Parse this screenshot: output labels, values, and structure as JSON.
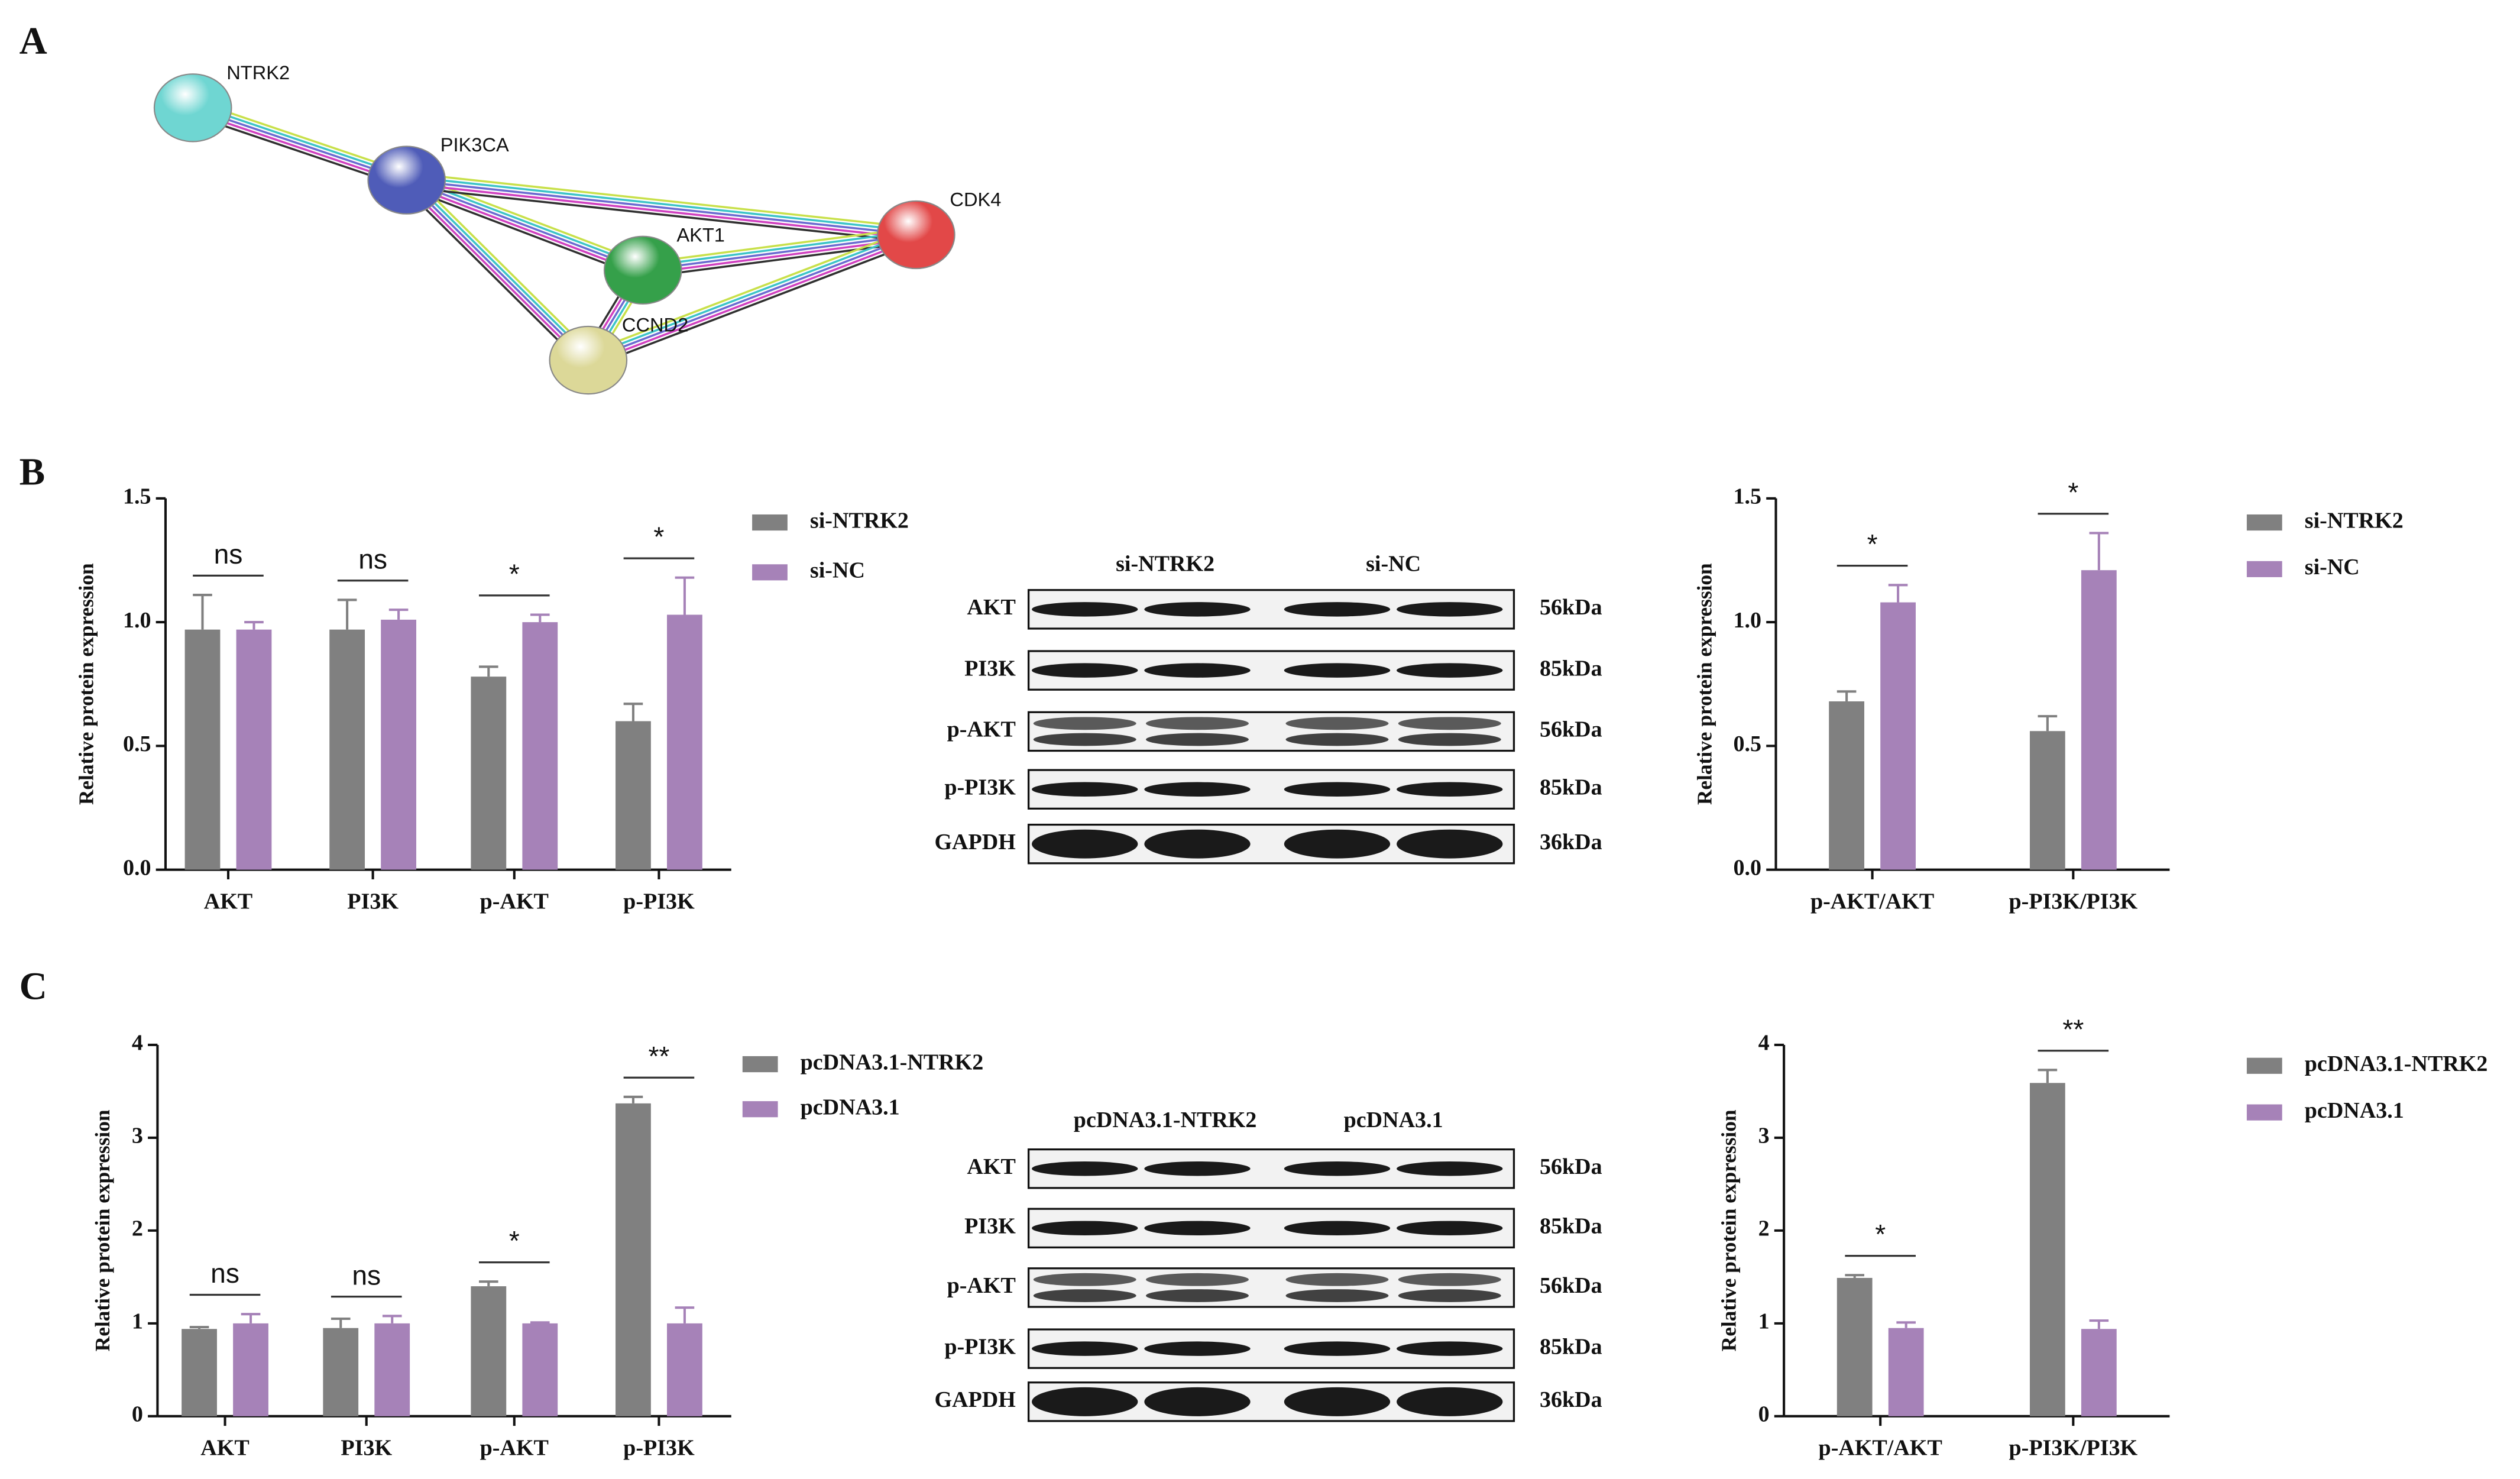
{
  "panels": [
    "A",
    "B",
    "C"
  ],
  "network": {
    "nodes": [
      {
        "label": "NTRK2",
        "color": "#6fd6d2"
      },
      {
        "label": "PIK3CA",
        "color": "#4f5cb8"
      },
      {
        "label": "AKT1",
        "color": "#35a04a"
      },
      {
        "label": "CDK4",
        "color": "#e24848"
      },
      {
        "label": "CCND2",
        "color": "#dcd898"
      }
    ]
  },
  "blots": [
    {
      "lanes": [
        "si-NTRK2",
        "si-NC"
      ],
      "rows": [
        {
          "protein": "AKT",
          "size": "56kDa"
        },
        {
          "protein": "PI3K",
          "size": "85kDa"
        },
        {
          "protein": "p-AKT",
          "size": "56kDa"
        },
        {
          "protein": "p-PI3K",
          "size": "85kDa"
        },
        {
          "protein": "GAPDH",
          "size": "36kDa"
        }
      ]
    },
    {
      "lanes": [
        "pcDNA3.1-NTRK2",
        "pcDNA3.1"
      ],
      "rows": [
        {
          "protein": "AKT",
          "size": "56kDa"
        },
        {
          "protein": "PI3K",
          "size": "85kDa"
        },
        {
          "protein": "p-AKT",
          "size": "56kDa"
        },
        {
          "protein": "p-PI3K",
          "size": "85kDa"
        },
        {
          "protein": "GAPDH",
          "size": "36kDa"
        }
      ]
    }
  ],
  "chart_data": [
    {
      "type": "bar",
      "ylabel": "Relative protein expression",
      "categories": [
        "AKT",
        "PI3K",
        "p-AKT",
        "p-PI3K"
      ],
      "series": [
        {
          "name": "si-NTRK2",
          "color": "#808080",
          "values": [
            0.97,
            0.97,
            0.78,
            0.6
          ],
          "errors": [
            0.14,
            0.12,
            0.04,
            0.07
          ]
        },
        {
          "name": "si-NC",
          "color": "#a682b8",
          "values": [
            0.97,
            1.01,
            1.0,
            1.03
          ],
          "errors": [
            0.03,
            0.04,
            0.03,
            0.15
          ]
        }
      ],
      "annotations": [
        "ns",
        "ns",
        "*",
        "*"
      ],
      "ylim": [
        0,
        1.5
      ],
      "yticks": [
        {
          "value": 0,
          "label": "0.0"
        },
        {
          "value": 0.5,
          "label": "0.5"
        },
        {
          "value": 1,
          "label": "1.0"
        },
        {
          "value": 1.5,
          "label": "1.5"
        }
      ]
    },
    {
      "type": "bar",
      "ylabel": "Relative protein expression",
      "categories": [
        "p-AKT/AKT",
        "p-PI3K/PI3K"
      ],
      "series": [
        {
          "name": "si-NTRK2",
          "color": "#808080",
          "values": [
            0.68,
            0.56
          ],
          "errors": [
            0.04,
            0.06
          ]
        },
        {
          "name": "si-NC",
          "color": "#a682b8",
          "values": [
            1.08,
            1.21
          ],
          "errors": [
            0.07,
            0.15
          ]
        }
      ],
      "annotations": [
        "*",
        "*"
      ],
      "ylim": [
        0,
        1.5
      ],
      "yticks": [
        {
          "value": 0,
          "label": "0.0"
        },
        {
          "value": 0.5,
          "label": "0.5"
        },
        {
          "value": 1,
          "label": "1.0"
        },
        {
          "value": 1.5,
          "label": "1.5"
        }
      ]
    },
    {
      "type": "bar",
      "ylabel": "Relative protein expression",
      "categories": [
        "AKT",
        "PI3K",
        "p-AKT",
        "p-PI3K"
      ],
      "series": [
        {
          "name": "pcDNA3.1-NTRK2",
          "color": "#808080",
          "values": [
            0.94,
            0.95,
            1.4,
            3.37
          ],
          "errors": [
            0.02,
            0.1,
            0.05,
            0.07
          ]
        },
        {
          "name": "pcDNA3.1",
          "color": "#a682b8",
          "values": [
            1.0,
            1.0,
            1.0,
            1.0
          ],
          "errors": [
            0.1,
            0.08,
            0.01,
            0.17
          ]
        }
      ],
      "annotations": [
        "ns",
        "ns",
        "*",
        "**"
      ],
      "ylim": [
        0,
        4
      ],
      "yticks": [
        0,
        1,
        2,
        3,
        4
      ]
    },
    {
      "type": "bar",
      "ylabel": "Relative protein expression",
      "categories": [
        "p-AKT/AKT",
        "p-PI3K/PI3K"
      ],
      "series": [
        {
          "name": "pcDNA3.1-NTRK2",
          "color": "#808080",
          "values": [
            1.49,
            3.59
          ],
          "errors": [
            0.03,
            0.14
          ]
        },
        {
          "name": "pcDNA3.1",
          "color": "#a682b8",
          "values": [
            0.95,
            0.94
          ],
          "errors": [
            0.06,
            0.09
          ]
        }
      ],
      "annotations": [
        "*",
        "**"
      ],
      "ylim": [
        0,
        4
      ],
      "yticks": [
        0,
        1,
        2,
        3,
        4
      ]
    }
  ]
}
